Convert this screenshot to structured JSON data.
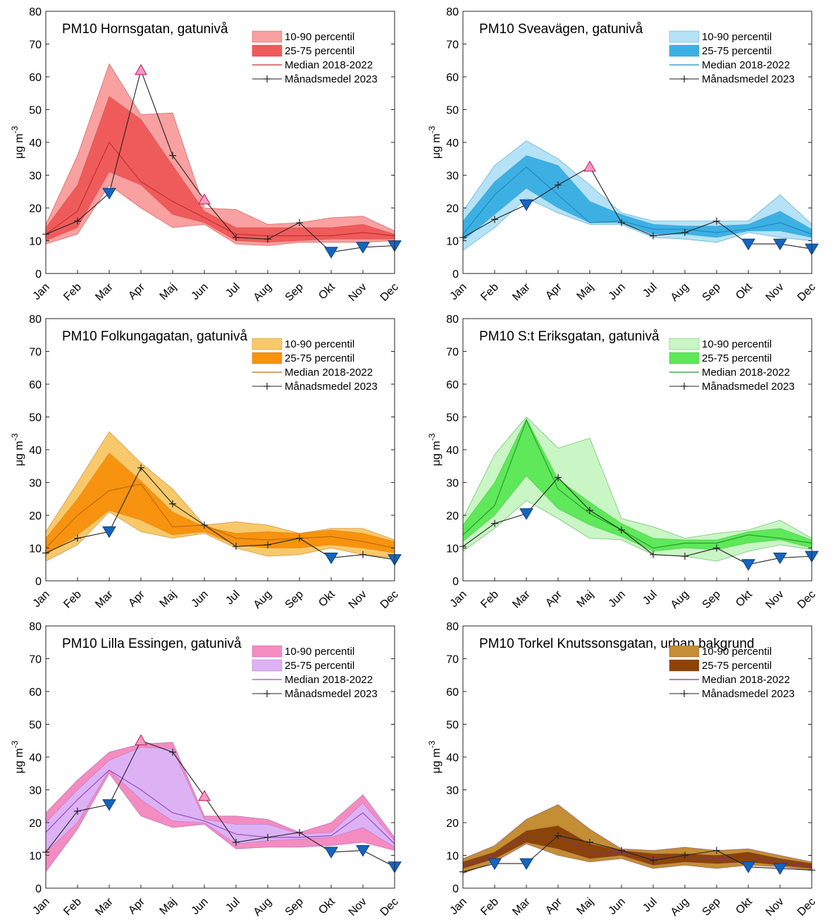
{
  "chart_data": [
    {
      "type": "area",
      "title": "PM10 Hornsgatan, gatunivå",
      "ylabel": "μg m-3",
      "ylabel_parts": {
        "mu": "μ",
        "rest": "g m",
        "sup": "-3"
      },
      "ylim": [
        0,
        80
      ],
      "yticks": [
        0,
        10,
        20,
        30,
        40,
        50,
        60,
        70,
        80
      ],
      "categories": [
        "Jan",
        "Feb",
        "Mar",
        "Apr",
        "Maj",
        "Jun",
        "Jul",
        "Aug",
        "Sep",
        "Okt",
        "Nov",
        "Dec"
      ],
      "legend": [
        "10-90 percentil",
        "25-75 percentil",
        "Median 2018-2022",
        "Månadsmedel 2023"
      ],
      "colors": {
        "band_outer": "#f9a0a0",
        "band_inner": "#ef5b5b",
        "median": "#c42e2e",
        "up_marker": "#f49ac1",
        "down_marker": "#1565c0"
      },
      "p10": [
        9,
        12,
        27,
        20,
        14,
        15,
        9,
        8.5,
        9.5,
        9.5,
        9.5,
        10
      ],
      "p90": [
        15,
        36,
        64,
        48.5,
        49,
        20,
        19.5,
        15,
        15.5,
        17,
        17.5,
        13
      ],
      "p25": [
        10,
        14,
        31,
        27,
        18,
        15.5,
        10,
        9.5,
        10,
        10.5,
        10.5,
        10.5
      ],
      "p75": [
        14,
        27,
        54,
        47,
        33,
        19,
        14,
        14,
        14,
        14,
        15,
        12
      ],
      "median": [
        12,
        19,
        40,
        28,
        22,
        17,
        12,
        11.5,
        11.5,
        11.5,
        12.5,
        11.5
      ],
      "monthly_2023": [
        12,
        16,
        24.5,
        62,
        36,
        22.5,
        11,
        10.5,
        15.5,
        6.5,
        8,
        8.5
      ]
    },
    {
      "type": "area",
      "title": "PM10 Sveavägen, gatunivå",
      "ylabel": "μg m-3",
      "ylabel_parts": {
        "mu": "μ",
        "rest": "g m",
        "sup": "-3"
      },
      "ylim": [
        0,
        80
      ],
      "yticks": [
        0,
        10,
        20,
        30,
        40,
        50,
        60,
        70,
        80
      ],
      "categories": [
        "Jan",
        "Feb",
        "Mar",
        "Apr",
        "Maj",
        "Jun",
        "Jul",
        "Aug",
        "Sep",
        "Okt",
        "Nov",
        "Dec"
      ],
      "legend": [
        "10-90 percentil",
        "25-75 percentil",
        "Median 2018-2022",
        "Månadsmedel 2023"
      ],
      "colors": {
        "band_outer": "#b5e2f7",
        "band_inner": "#3db0e3",
        "median": "#1f8ac2",
        "up_marker": "#f49ac1",
        "down_marker": "#1565c0"
      },
      "p10": [
        7,
        14,
        23,
        18.5,
        15,
        15,
        11,
        10.5,
        9.5,
        12.5,
        11,
        10
      ],
      "p90": [
        19,
        33,
        40.5,
        35,
        27,
        18.5,
        16,
        16,
        16,
        16,
        24,
        15
      ],
      "p25": [
        10,
        18,
        26,
        20,
        15.5,
        15.5,
        12,
        12,
        11,
        13,
        13,
        11
      ],
      "p75": [
        16,
        28,
        36,
        33,
        22,
        18,
        15,
        14.5,
        14.5,
        15,
        19,
        13.5
      ],
      "median": [
        12,
        24,
        32.5,
        24,
        15.5,
        16,
        13.5,
        13.5,
        12.5,
        13.5,
        15.5,
        12
      ],
      "monthly_2023": [
        11,
        16.5,
        21,
        27,
        32.5,
        15.5,
        11.5,
        12.5,
        16,
        9,
        9,
        7.5
      ]
    },
    {
      "type": "area",
      "title": "PM10 Folkungagatan, gatunivå",
      "ylabel": "μg m-3",
      "ylabel_parts": {
        "mu": "μ",
        "rest": "g m",
        "sup": "-3"
      },
      "ylim": [
        0,
        80
      ],
      "yticks": [
        0,
        10,
        20,
        30,
        40,
        50,
        60,
        70,
        80
      ],
      "categories": [
        "Jan",
        "Feb",
        "Mar",
        "Apr",
        "Maj",
        "Jun",
        "Jul",
        "Aug",
        "Sep",
        "Okt",
        "Nov",
        "Dec"
      ],
      "legend": [
        "10-90 percentil",
        "25-75 percentil",
        "Median 2018-2022",
        "Månadsmedel 2023"
      ],
      "colors": {
        "band_outer": "#f8c96a",
        "band_inner": "#f7930e",
        "median": "#c2690a",
        "up_marker": "#f49ac1",
        "down_marker": "#1565c0"
      },
      "p10": [
        6,
        11,
        21,
        15,
        13,
        14.5,
        10,
        7.5,
        8,
        10,
        8,
        7
      ],
      "p90": [
        15,
        30,
        45.5,
        36,
        28,
        17,
        18,
        17,
        14.5,
        16,
        16,
        12.5
      ],
      "p25": [
        8,
        14,
        21.5,
        18.5,
        14,
        15,
        11,
        10,
        10,
        11,
        10,
        8.5
      ],
      "p75": [
        13,
        25,
        39,
        30.5,
        21,
        16.5,
        14.5,
        15,
        14.5,
        15.5,
        14.5,
        12
      ],
      "median": [
        10,
        20,
        27.5,
        29.5,
        16.5,
        17,
        13,
        12.5,
        13,
        13.5,
        12,
        10
      ],
      "monthly_2023": [
        8.5,
        13,
        15,
        34.5,
        23.5,
        17,
        10.5,
        11,
        13,
        7,
        8,
        6.5
      ]
    },
    {
      "type": "area",
      "title": "PM10 S:t Eriksgatan, gatunivå",
      "ylabel": "μg m-3",
      "ylabel_parts": {
        "mu": "μ",
        "rest": "g m",
        "sup": "-3"
      },
      "ylim": [
        0,
        80
      ],
      "yticks": [
        0,
        10,
        20,
        30,
        40,
        50,
        60,
        70,
        80
      ],
      "categories": [
        "Jan",
        "Feb",
        "Mar",
        "Apr",
        "Maj",
        "Jun",
        "Jul",
        "Aug",
        "Sep",
        "Okt",
        "Nov",
        "Dec"
      ],
      "legend": [
        "10-90 percentil",
        "25-75 percentil",
        "Median 2018-2022",
        "Månadsmedel 2023"
      ],
      "colors": {
        "band_outer": "#c9f6c4",
        "band_inner": "#5ee85a",
        "median": "#2a9e2a",
        "up_marker": "#f49ac1",
        "down_marker": "#1565c0"
      },
      "p10": [
        9,
        16,
        24.5,
        19,
        13,
        12.5,
        8,
        7.5,
        6,
        9,
        11,
        9.5
      ],
      "p90": [
        19,
        38.5,
        50,
        40.5,
        43.5,
        19,
        16.5,
        13,
        14.5,
        15.5,
        18.5,
        13
      ],
      "p25": [
        12,
        20,
        32,
        22,
        17,
        13.5,
        9,
        10,
        9.5,
        11.5,
        12.5,
        10
      ],
      "p75": [
        17,
        30,
        49.5,
        31,
        24,
        17.5,
        13,
        12.5,
        12.5,
        15,
        16,
        12.5
      ],
      "median": [
        14,
        23,
        49,
        28,
        20.5,
        15.5,
        10,
        11.5,
        11.5,
        14,
        13,
        11.5
      ],
      "monthly_2023": [
        10.5,
        17.5,
        20.5,
        31.5,
        21.5,
        15.5,
        8,
        7.5,
        10,
        5,
        7,
        7.5
      ]
    },
    {
      "type": "area",
      "title": "PM10 Lilla Essingen, gatunivå",
      "ylabel": "μg m-3",
      "ylabel_parts": {
        "mu": "μ",
        "rest": "g m",
        "sup": "-3"
      },
      "ylim": [
        0,
        80
      ],
      "yticks": [
        0,
        10,
        20,
        30,
        40,
        50,
        60,
        70,
        80
      ],
      "categories": [
        "Jan",
        "Feb",
        "Mar",
        "Apr",
        "Maj",
        "Jun",
        "Jul",
        "Aug",
        "Sep",
        "Okt",
        "Nov",
        "Dec"
      ],
      "legend": [
        "10-90 percentil",
        "25-75 percentil",
        "Median 2018-2022",
        "Månadsmedel 2023"
      ],
      "colors": {
        "band_outer": "#f48cc0",
        "band_inner": "#dcb2f5",
        "median": "#9a4dbd",
        "up_marker": "#f49ac1",
        "down_marker": "#1565c0"
      },
      "p10": [
        5,
        18,
        35,
        22,
        18.5,
        19.5,
        12,
        12.5,
        12.5,
        13,
        14,
        11.5
      ],
      "p90": [
        23,
        33,
        41.5,
        44,
        44.5,
        22,
        22,
        21,
        17,
        20,
        28.5,
        15.5
      ],
      "p25": [
        11,
        20,
        36,
        27,
        20.5,
        20,
        13.5,
        14.5,
        15,
        15.5,
        18.5,
        12.5
      ],
      "p75": [
        20,
        30,
        39,
        43,
        42.5,
        21,
        19.5,
        19.5,
        16.5,
        17,
        26,
        14.5
      ],
      "median": [
        17,
        27,
        36,
        30,
        23,
        20.5,
        16.5,
        15.5,
        15.5,
        16,
        23,
        13.5
      ],
      "monthly_2023": [
        11,
        23.5,
        25.5,
        45,
        41.5,
        28,
        14,
        15.5,
        17,
        11,
        11.5,
        6.5
      ]
    },
    {
      "type": "area",
      "title": "PM10 Torkel Knutssonsgatan, urban bakgrund",
      "ylabel": "μg m-3",
      "ylabel_parts": {
        "mu": "μ",
        "rest": "g m",
        "sup": "-3"
      },
      "ylim": [
        0,
        80
      ],
      "yticks": [
        0,
        10,
        20,
        30,
        40,
        50,
        60,
        70,
        80
      ],
      "categories": [
        "Jan",
        "Feb",
        "Mar",
        "Apr",
        "Maj",
        "Jun",
        "Jul",
        "Aug",
        "Sep",
        "Okt",
        "Nov",
        "Dec"
      ],
      "legend": [
        "10-90 percentil",
        "25-75 percentil",
        "Median 2018-2022",
        "Månadsmedel 2023"
      ],
      "colors": {
        "band_outer": "#c38e34",
        "band_inner": "#8c4306",
        "median": "#7a3a6e",
        "up_marker": "#f49ac1",
        "down_marker": "#1565c0"
      },
      "p10": [
        4.5,
        8,
        13.5,
        10,
        8,
        9,
        6,
        7,
        6,
        7,
        6.5,
        5.5
      ],
      "p90": [
        9,
        13,
        21,
        25.5,
        18,
        12,
        11.5,
        12.5,
        11.5,
        12,
        10,
        8
      ],
      "p25": [
        6,
        9,
        14,
        12,
        9,
        10,
        7,
        8,
        7.5,
        8,
        7,
        6
      ],
      "p75": [
        8,
        11,
        17.5,
        19,
        13.5,
        11.5,
        10.5,
        10.5,
        10,
        11,
        9,
        7.5
      ],
      "median": [
        7,
        10,
        16,
        16,
        11,
        11,
        9,
        9.5,
        9,
        9.5,
        8,
        6.5
      ],
      "monthly_2023": [
        5,
        7.5,
        7.5,
        16,
        14,
        11.5,
        8.5,
        10,
        11.5,
        6.5,
        6,
        5.5
      ]
    }
  ]
}
